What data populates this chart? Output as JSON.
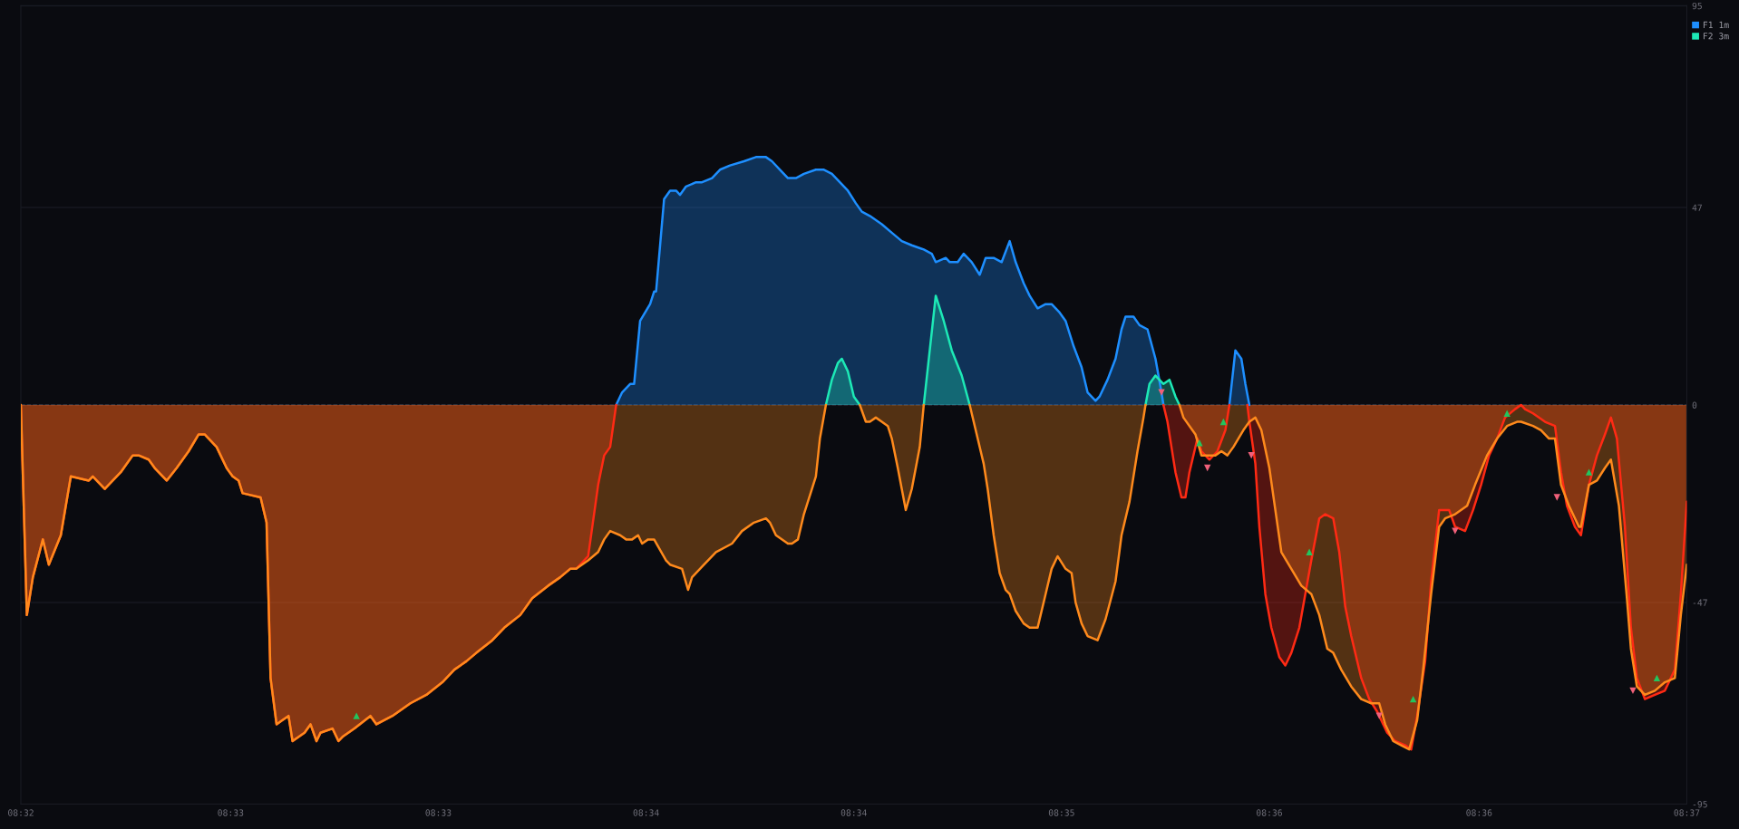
{
  "chart_data": {
    "type": "area",
    "xlim": [
      8.5333,
      8.6167
    ],
    "ylim": [
      -95,
      95
    ],
    "xticks": [
      {
        "value": 8.5333,
        "label": "08:32"
      },
      {
        "value": 8.5438,
        "label": "08:33"
      },
      {
        "value": 8.5542,
        "label": "08:33"
      },
      {
        "value": 8.5646,
        "label": "08:34"
      },
      {
        "value": 8.575,
        "label": "08:34"
      },
      {
        "value": 8.5854,
        "label": "08:35"
      },
      {
        "value": 8.5958,
        "label": "08:36"
      },
      {
        "value": 8.6063,
        "label": "08:36"
      },
      {
        "value": 8.6167,
        "label": "08:37"
      }
    ],
    "yticks": [
      95,
      47,
      0,
      -47,
      -95
    ],
    "grid": "y",
    "legend": "top right",
    "ref_lines": [
      {
        "axis": "y",
        "value": 0,
        "color": "#3a3a44",
        "line_style": "dashed"
      }
    ],
    "series": [
      {
        "name": "F1 1m",
        "color": "#1e8fff",
        "x": [
          8.5631,
          8.5634,
          8.5638,
          8.564,
          8.5643,
          8.5648,
          8.565,
          8.5651,
          8.5655,
          8.5658,
          8.5661,
          8.5663,
          8.5666,
          8.5671,
          8.5674,
          8.5679,
          8.5683,
          8.5688,
          8.5695,
          8.5701,
          8.5706,
          8.5709,
          8.5713,
          8.5717,
          8.5721,
          8.5725,
          8.5731,
          8.5735,
          8.5739,
          8.5743,
          8.5747,
          8.5751,
          8.5754,
          8.5758,
          8.5764,
          8.5769,
          8.5774,
          8.5779,
          8.5785,
          8.5789,
          8.5791,
          8.5796,
          8.5798,
          8.5802,
          8.5805,
          8.5809,
          8.5813,
          8.5816,
          8.582,
          8.5824,
          8.5828,
          8.5831,
          8.5835,
          8.5838,
          8.5842,
          8.5846,
          8.5849,
          8.5853,
          8.5856,
          8.586,
          8.5864,
          8.5867,
          8.5871,
          8.5873,
          8.5877,
          8.5881,
          8.5884,
          8.5886,
          8.589,
          8.5893,
          8.5897,
          8.5901,
          8.5904,
          8.5905,
          8.5919,
          8.5938,
          8.5941,
          8.5944,
          8.5946,
          8.5948
        ],
        "values": [
          0,
          3,
          5,
          5,
          20,
          24,
          27,
          27,
          49,
          51,
          51,
          50,
          52,
          53,
          53,
          54,
          56,
          57,
          58,
          59,
          59,
          58,
          56,
          54,
          54,
          55,
          56,
          56,
          55,
          53,
          51,
          48,
          46,
          45,
          43,
          41,
          39,
          38,
          37,
          36,
          34,
          35,
          34,
          34,
          36,
          34,
          31,
          35,
          35,
          34,
          39,
          34,
          29,
          26,
          23,
          24,
          24,
          22,
          20,
          14,
          9,
          3,
          1,
          2,
          6,
          11,
          18,
          21,
          21,
          19,
          18,
          11,
          3,
          0,
          null,
          0,
          13,
          11,
          5,
          0
        ]
      },
      {
        "color": "#ff2a14",
        "x": [
          8.5333,
          8.5336,
          8.5339,
          8.5344,
          8.5347,
          8.5353,
          8.5358,
          8.5367,
          8.5369,
          8.5375,
          8.5383,
          8.5389,
          8.5392,
          8.5397,
          8.54,
          8.5406,
          8.5411,
          8.5417,
          8.5422,
          8.5425,
          8.5431,
          8.5436,
          8.5439,
          8.5442,
          8.5444,
          8.5453,
          8.5456,
          8.5458,
          8.5461,
          8.5464,
          8.5467,
          8.5469,
          8.5475,
          8.5478,
          8.5481,
          8.5483,
          8.5489,
          8.5492,
          8.5494,
          8.55,
          8.5508,
          8.5511,
          8.5519,
          8.5528,
          8.5536,
          8.5544,
          8.555,
          8.5556,
          8.5561,
          8.5569,
          8.5575,
          8.5583,
          8.5589,
          8.5597,
          8.5603,
          8.5608,
          8.5611,
          8.5617,
          8.5622,
          8.5625,
          8.5628,
          8.5631,
          8.575,
          8.5905,
          8.5907,
          8.5911,
          8.5914,
          8.5916,
          8.5918,
          8.5922,
          8.5924,
          8.5928,
          8.5932,
          8.5936,
          8.5938,
          8.5942,
          8.5947,
          8.5948,
          8.5951,
          8.5953,
          8.5956,
          8.5959,
          8.5963,
          8.5966,
          8.5969,
          8.5973,
          8.5976,
          8.5979,
          8.5983,
          8.5986,
          8.599,
          8.5993,
          8.5996,
          8.5999,
          8.6004,
          8.6008,
          8.6012,
          8.6017,
          8.6021,
          8.6026,
          8.6029,
          8.6032,
          8.6036,
          8.6039,
          8.6043,
          8.6048,
          8.6051,
          8.6056,
          8.606,
          8.6064,
          8.6068,
          8.6072,
          8.6076,
          8.6081,
          8.6084,
          8.6086,
          8.609,
          8.6096,
          8.6101,
          8.6104,
          8.6107,
          8.6111,
          8.6114,
          8.6118,
          8.6122,
          8.6126,
          8.6129,
          8.6132,
          8.6136,
          8.6139,
          8.6142,
          8.6146,
          8.6151,
          8.6156,
          8.6161,
          8.6164,
          8.6167
        ],
        "values": [
          0,
          -50,
          -41,
          -32,
          -38,
          -31,
          -17,
          -18,
          -17,
          -20,
          -16,
          -12,
          -12,
          -13,
          -15,
          -18,
          -15,
          -11,
          -7,
          -7,
          -10,
          -15,
          -17,
          -18,
          -21,
          -22,
          -28,
          -65,
          -76,
          -75,
          -74,
          -80,
          -78,
          -76,
          -80,
          -78,
          -77,
          -80,
          -79,
          -77,
          -74,
          -76,
          -74,
          -71,
          -69,
          -66,
          -63,
          -61,
          -59,
          -56,
          -53,
          -50,
          -46,
          -43,
          -41,
          -39,
          -39,
          -36,
          -19,
          -12,
          -10,
          0,
          null,
          0,
          -4,
          -16,
          -22,
          -22,
          -16,
          -8,
          -11,
          -13,
          -11,
          -6,
          0,
          null,
          0,
          -4,
          -14,
          -29,
          -45,
          -53,
          -60,
          -62,
          -59,
          -53,
          -45,
          -37,
          -27,
          -26,
          -27,
          -35,
          -48,
          -55,
          -65,
          -70,
          -73,
          -78,
          -80,
          -81,
          -82,
          -74,
          -61,
          -42,
          -25,
          -25,
          -29,
          -30,
          -25,
          -19,
          -12,
          -8,
          -3,
          -1,
          0,
          -1,
          -2,
          -4,
          -5,
          -16,
          -24,
          -29,
          -31,
          -19,
          -12,
          -7,
          -3,
          -8,
          -29,
          -53,
          -65,
          -70,
          -69,
          -68,
          -63,
          -45,
          -23
        ]
      },
      {
        "name": "F2 3m",
        "color": "#1de9b6",
        "x": [
          8.5736,
          8.5739,
          8.5742,
          8.5744,
          8.5747,
          8.575,
          8.5753,
          8.5767,
          8.5785,
          8.5788,
          8.5791,
          8.5795,
          8.5799,
          8.5804,
          8.5808,
          8.585,
          8.5896,
          8.5898,
          8.5901,
          8.5905,
          8.5908,
          8.5911,
          8.5913
        ],
        "values": [
          0,
          6,
          10,
          11,
          8,
          2,
          0,
          null,
          0,
          13,
          26,
          20,
          13,
          7,
          0,
          null,
          0,
          5,
          7,
          5,
          6,
          2,
          0
        ]
      },
      {
        "color": "#ff8a1c",
        "x": [
          8.5333,
          8.5336,
          8.5339,
          8.5344,
          8.5347,
          8.5353,
          8.5358,
          8.5367,
          8.5369,
          8.5375,
          8.5383,
          8.5389,
          8.5392,
          8.5397,
          8.54,
          8.5406,
          8.5411,
          8.5417,
          8.5422,
          8.5425,
          8.5431,
          8.5436,
          8.5439,
          8.5442,
          8.5444,
          8.5453,
          8.5456,
          8.5458,
          8.5461,
          8.5464,
          8.5467,
          8.5469,
          8.5475,
          8.5478,
          8.5481,
          8.5483,
          8.5489,
          8.5492,
          8.5494,
          8.55,
          8.5508,
          8.5511,
          8.5519,
          8.5528,
          8.5536,
          8.5544,
          8.555,
          8.5556,
          8.5561,
          8.5569,
          8.5575,
          8.5583,
          8.5589,
          8.5597,
          8.5603,
          8.5608,
          8.5611,
          8.5617,
          8.5622,
          8.5625,
          8.5628,
          8.5633,
          8.5636,
          8.5639,
          8.5642,
          8.5644,
          8.5647,
          8.565,
          8.5656,
          8.5658,
          8.5664,
          8.5667,
          8.5669,
          8.5675,
          8.5681,
          8.5689,
          8.5694,
          8.57,
          8.5706,
          8.5708,
          8.5711,
          8.5717,
          8.5719,
          8.5722,
          8.5725,
          8.5731,
          8.5733,
          8.5736
        ],
        "values": [
          0,
          -50,
          -41,
          -32,
          -38,
          -31,
          -17,
          -18,
          -17,
          -20,
          -16,
          -12,
          -12,
          -13,
          -15,
          -18,
          -15,
          -11,
          -7,
          -7,
          -10,
          -15,
          -17,
          -18,
          -21,
          -22,
          -28,
          -65,
          -76,
          -75,
          -74,
          -80,
          -78,
          -76,
          -80,
          -78,
          -77,
          -80,
          -79,
          -77,
          -74,
          -76,
          -74,
          -71,
          -69,
          -66,
          -63,
          -61,
          -59,
          -56,
          -53,
          -50,
          -46,
          -43,
          -41,
          -39,
          -39,
          -37,
          -35,
          -32,
          -30,
          -31,
          -32,
          -32,
          -31,
          -33,
          -32,
          -32,
          -37,
          -38,
          -39,
          -44,
          -41,
          -38,
          -35,
          -33,
          -30,
          -28,
          -27,
          -28,
          -31,
          -33,
          -33,
          -32,
          -26,
          -17,
          -8,
          0
        ]
      },
      {
        "color": "#ff8a1c",
        "x": [
          8.5753,
          8.5756,
          8.5758,
          8.5761,
          8.5764,
          8.5767,
          8.5769,
          8.5772,
          8.5774,
          8.5776,
          8.5779,
          8.5783,
          8.5785
        ],
        "values": [
          0,
          -4,
          -4,
          -3,
          -4,
          -5,
          -8,
          -15,
          -20,
          -25,
          -20,
          -10,
          0
        ]
      },
      {
        "color": "#ff8a1c",
        "x": [
          8.5808,
          8.5811,
          8.5815,
          8.5817,
          8.582,
          8.5823,
          8.5826,
          8.5828,
          8.5831,
          8.5835,
          8.5838,
          8.5842,
          8.5846,
          8.5849,
          8.5852,
          8.5856,
          8.5859,
          8.5861,
          8.5864,
          8.5867,
          8.5872,
          8.5876,
          8.5881,
          8.5884,
          8.5888,
          8.5892,
          8.5895,
          8.5896
        ],
        "values": [
          0,
          -6,
          -14,
          -20,
          -31,
          -40,
          -44,
          -45,
          -49,
          -52,
          -53,
          -53,
          -45,
          -39,
          -36,
          -39,
          -40,
          -47,
          -52,
          -55,
          -56,
          -51,
          -42,
          -31,
          -23,
          -11,
          -3,
          0
        ]
      },
      {
        "color": "#ff8a1c",
        "x": [
          8.5913,
          8.5915,
          8.5921,
          8.5924,
          8.5928,
          8.5931,
          8.5934,
          8.5937,
          8.594,
          8.5945,
          8.5948,
          8.5951,
          8.5954,
          8.5958,
          8.5961,
          8.5964,
          8.5969,
          8.5974,
          8.5979,
          8.5983,
          8.5987,
          8.599,
          8.5994,
          8.5999,
          8.6004,
          8.6009,
          8.6013,
          8.6016,
          8.602,
          8.6024,
          8.6028,
          8.6032,
          8.6035,
          8.6039,
          8.6043,
          8.6046,
          8.6051,
          8.6057,
          8.6061,
          8.6067,
          8.6072,
          8.6077,
          8.6082,
          8.6084,
          8.609,
          8.6094,
          8.6098,
          8.6101,
          8.6104,
          8.6108,
          8.6113,
          8.6114,
          8.6118,
          8.6122,
          8.6126,
          8.6129,
          8.6133,
          8.6137,
          8.6139,
          8.6142,
          8.6146,
          8.6151,
          8.6156,
          8.6161,
          8.6164,
          8.6167
        ],
        "values": [
          0,
          -3,
          -7,
          -12,
          -12,
          -12,
          -11,
          -12,
          -10,
          -6,
          -4,
          -3,
          -6,
          -15,
          -25,
          -35,
          -39,
          -43,
          -45,
          -50,
          -58,
          -59,
          -63,
          -67,
          -70,
          -71,
          -71,
          -76,
          -80,
          -81,
          -82,
          -75,
          -63,
          -45,
          -29,
          -27,
          -26,
          -24,
          -19,
          -12,
          -8,
          -5,
          -4,
          -4,
          -5,
          -6,
          -8,
          -8,
          -19,
          -24,
          -29,
          -29,
          -19,
          -18,
          -15,
          -13,
          -24,
          -46,
          -58,
          -67,
          -69,
          -68,
          -66,
          -65,
          -50,
          -38
        ]
      },
      {
        "type": "scatter",
        "color": "#22c55e",
        "marker": "triangle",
        "x": [
          8.5501,
          8.5923,
          8.5935,
          8.5978,
          8.603,
          8.6077,
          8.6118,
          8.6152
        ],
        "values": [
          -74,
          -9,
          -4,
          -35,
          -70,
          -2,
          -16,
          -65
        ]
      },
      {
        "type": "scatter",
        "color": "#f0607a",
        "marker": "triangle_down",
        "x": [
          8.5904,
          8.5927,
          8.5949,
          8.6013,
          8.6051,
          8.6102,
          8.614
        ],
        "values": [
          3,
          -15,
          -12,
          -74,
          -30,
          -22,
          -68
        ]
      }
    ]
  }
}
